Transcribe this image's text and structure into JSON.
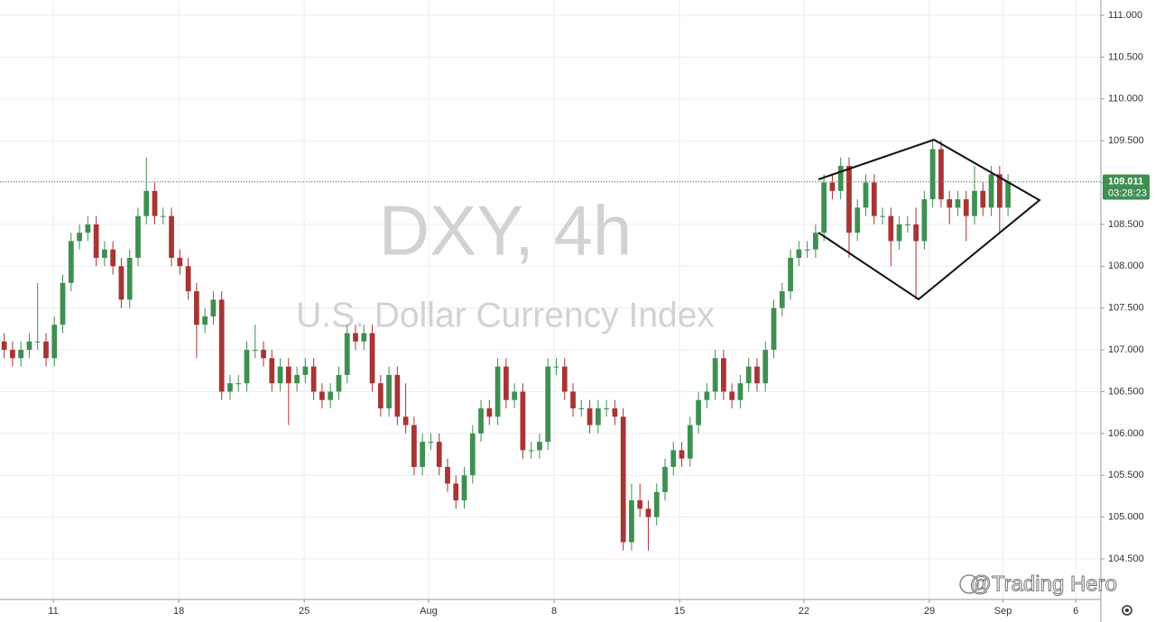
{
  "chart_data": {
    "type": "candlestick",
    "title": "DXY, 4h",
    "subtitle": "U.S. Dollar Currency Index",
    "open": [
      107.1,
      107.0,
      106.9,
      107.0,
      107.1,
      107.1,
      106.9,
      107.3,
      107.8,
      108.3,
      108.4,
      108.5,
      108.1,
      108.2,
      108.0,
      107.6,
      108.1,
      108.6,
      108.9,
      108.6,
      108.6,
      108.1,
      108.0,
      107.7,
      107.3,
      107.4,
      107.6,
      106.5,
      106.6,
      106.6,
      107.0,
      107.0,
      106.9,
      106.6,
      106.8,
      106.6,
      106.7,
      106.8,
      106.5,
      106.4,
      106.5,
      106.7,
      107.2,
      107.1,
      107.2,
      106.6,
      106.3,
      106.7,
      106.2,
      106.1,
      105.6,
      105.9,
      105.9,
      105.6,
      105.4,
      105.2,
      105.5,
      106.0,
      106.3,
      106.2,
      106.8,
      106.4,
      106.5,
      105.8,
      105.8,
      105.9,
      106.8,
      106.8,
      106.5,
      106.3,
      106.3,
      106.1,
      106.3,
      106.3,
      106.2,
      104.7,
      105.2,
      105.1,
      105.0,
      105.3,
      105.6,
      105.8,
      105.7,
      106.1,
      106.4,
      106.5,
      106.9,
      106.5,
      106.4,
      106.6,
      106.8,
      106.6,
      107.0,
      107.5,
      107.7,
      108.1,
      108.2,
      108.2,
      108.4,
      109.0,
      108.9,
      109.2,
      108.4,
      108.7,
      109.0,
      108.6,
      108.6,
      108.3,
      108.5,
      108.5,
      108.3,
      108.8,
      109.4,
      108.8,
      108.7,
      108.8,
      108.6,
      108.9,
      108.7,
      109.1,
      108.7
    ],
    "high": [
      107.2,
      107.1,
      107.1,
      107.2,
      107.8,
      107.2,
      107.4,
      107.9,
      108.4,
      108.5,
      108.6,
      108.6,
      108.3,
      108.3,
      108.1,
      108.2,
      108.7,
      109.3,
      109.0,
      108.7,
      108.7,
      108.2,
      108.1,
      107.8,
      107.5,
      107.7,
      107.7,
      106.7,
      106.7,
      107.1,
      107.3,
      107.1,
      107.0,
      106.9,
      106.9,
      106.8,
      106.9,
      106.9,
      106.6,
      106.6,
      106.8,
      107.3,
      107.3,
      107.3,
      107.3,
      106.7,
      106.8,
      106.8,
      106.6,
      106.2,
      106.0,
      106.0,
      106.0,
      105.7,
      105.5,
      105.6,
      106.1,
      106.4,
      106.4,
      106.9,
      106.9,
      106.6,
      106.6,
      105.9,
      106.0,
      106.9,
      106.9,
      106.9,
      106.6,
      106.4,
      106.4,
      106.4,
      106.4,
      106.4,
      106.3,
      105.4,
      105.4,
      105.2,
      105.4,
      105.7,
      105.9,
      105.9,
      106.2,
      106.5,
      106.6,
      107.0,
      107.0,
      106.6,
      106.7,
      106.9,
      106.9,
      107.1,
      107.6,
      107.8,
      108.2,
      108.3,
      108.3,
      108.5,
      109.1,
      109.1,
      109.3,
      109.3,
      108.8,
      109.1,
      109.1,
      108.7,
      108.7,
      108.6,
      108.6,
      108.7,
      108.9,
      109.5,
      109.5,
      108.9,
      108.9,
      108.9,
      109.2,
      109.0,
      109.2,
      109.2,
      109.1
    ],
    "low": [
      106.9,
      106.8,
      106.8,
      106.9,
      107.0,
      106.8,
      106.8,
      107.2,
      107.7,
      108.2,
      108.3,
      108.0,
      108.0,
      107.9,
      107.5,
      107.5,
      108.0,
      108.5,
      108.5,
      108.5,
      108.0,
      107.9,
      107.6,
      106.9,
      107.2,
      107.3,
      106.4,
      106.4,
      106.5,
      106.5,
      106.9,
      106.8,
      106.5,
      106.5,
      106.1,
      106.5,
      106.6,
      106.4,
      106.3,
      106.3,
      106.4,
      106.6,
      107.0,
      107.0,
      106.5,
      106.2,
      106.2,
      106.1,
      106.0,
      105.5,
      105.5,
      105.8,
      105.5,
      105.3,
      105.1,
      105.1,
      105.4,
      105.9,
      106.1,
      106.1,
      106.3,
      106.3,
      105.7,
      105.7,
      105.7,
      105.8,
      106.7,
      106.4,
      106.2,
      106.2,
      106.0,
      106.0,
      106.2,
      106.1,
      104.6,
      104.6,
      105.0,
      104.6,
      104.9,
      105.2,
      105.5,
      105.6,
      105.6,
      106.0,
      106.3,
      106.4,
      106.4,
      106.3,
      106.3,
      106.5,
      106.5,
      106.5,
      106.9,
      107.4,
      107.6,
      108.0,
      108.1,
      108.1,
      108.3,
      108.8,
      108.8,
      108.1,
      108.3,
      108.6,
      108.5,
      108.5,
      108.0,
      108.2,
      108.4,
      107.6,
      108.2,
      108.7,
      108.7,
      108.5,
      108.6,
      108.3,
      108.5,
      108.6,
      108.6,
      108.4,
      108.6
    ],
    "close": [
      107.0,
      106.9,
      107.0,
      107.1,
      107.1,
      106.9,
      107.3,
      107.8,
      108.3,
      108.4,
      108.5,
      108.1,
      108.2,
      108.0,
      107.6,
      108.1,
      108.6,
      108.9,
      108.6,
      108.6,
      108.1,
      108.0,
      107.7,
      107.3,
      107.4,
      107.6,
      106.5,
      106.6,
      106.6,
      107.0,
      107.0,
      106.9,
      106.6,
      106.8,
      106.6,
      106.7,
      106.8,
      106.5,
      106.4,
      106.5,
      106.7,
      107.2,
      107.1,
      107.2,
      106.6,
      106.3,
      106.7,
      106.2,
      106.1,
      105.6,
      105.9,
      105.9,
      105.6,
      105.4,
      105.2,
      105.5,
      106.0,
      106.3,
      106.2,
      106.8,
      106.4,
      106.5,
      105.8,
      105.8,
      105.9,
      106.8,
      106.8,
      106.5,
      106.3,
      106.3,
      106.1,
      106.3,
      106.3,
      106.2,
      104.7,
      105.2,
      105.1,
      105.0,
      105.3,
      105.6,
      105.8,
      105.7,
      106.1,
      106.4,
      106.5,
      106.9,
      106.5,
      106.4,
      106.6,
      106.8,
      106.6,
      107.0,
      107.5,
      107.7,
      108.1,
      108.2,
      108.2,
      108.4,
      109.0,
      108.9,
      109.2,
      108.4,
      108.7,
      109.0,
      108.6,
      108.6,
      108.3,
      108.5,
      108.5,
      108.3,
      108.8,
      109.4,
      108.8,
      108.7,
      108.8,
      108.6,
      108.9,
      108.7,
      109.1,
      108.7,
      109.011
    ],
    "up_color": "#3f8f52",
    "down_color": "#a93434",
    "xlim": [
      -0.5,
      131.1
    ],
    "xticks": [
      {
        "value": 5.87,
        "label": "11"
      },
      {
        "value": 20.87,
        "label": "18"
      },
      {
        "value": 35.87,
        "label": "25"
      },
      {
        "value": 50.74,
        "label": "Aug"
      },
      {
        "value": 65.74,
        "label": "8"
      },
      {
        "value": 80.74,
        "label": "15"
      },
      {
        "value": 95.6,
        "label": "22"
      },
      {
        "value": 110.6,
        "label": "29"
      },
      {
        "value": 119.4,
        "label": "Sep"
      },
      {
        "value": 128.1,
        "label": "6"
      }
    ],
    "ylim": [
      104.015,
      111.183
    ],
    "yticks": [
      {
        "value": 104.5,
        "label": "104.500"
      },
      {
        "value": 105,
        "label": "105.000"
      },
      {
        "value": 105.5,
        "label": "105.500"
      },
      {
        "value": 106,
        "label": "106.000"
      },
      {
        "value": 106.5,
        "label": "106.500"
      },
      {
        "value": 107,
        "label": "107.000"
      },
      {
        "value": 107.5,
        "label": "107.500"
      },
      {
        "value": 108,
        "label": "108.000"
      },
      {
        "value": 108.5,
        "label": "108.500"
      },
      {
        "value": 109,
        "label": "109.000"
      },
      {
        "value": 109.5,
        "label": "109.500"
      },
      {
        "value": 110,
        "label": "110.000"
      },
      {
        "value": 110.5,
        "label": "110.500"
      },
      {
        "value": 111,
        "label": "111.000"
      }
    ],
    "grid": true,
    "last_price": 109.011,
    "countdown": "03:28:23"
  },
  "watermark": "@Trading Hero"
}
